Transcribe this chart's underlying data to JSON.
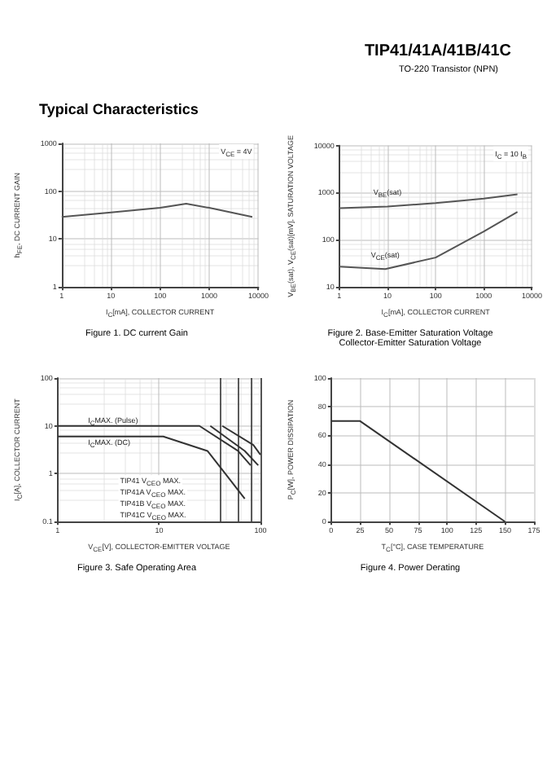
{
  "chart_data": [
    {
      "type": "line",
      "title": "Figure 1. DC current Gain",
      "annotations": [
        "TIP41/41A/41B/41C",
        "TO-220 Transistor (NPN)",
        "Typical Characteristics",
        "V$_{CE}$ = 4V"
      ],
      "xlabel": "I$_{C}$[mA], COLLECTOR CURRENT",
      "ylabel": "h$_{FE}$, DC CURRENT GAIN",
      "log": "xy",
      "xlim": [
        1,
        10000
      ],
      "ylim": [
        1,
        1000
      ],
      "xticks": [
        1,
        10,
        100,
        1000,
        10000
      ],
      "yticks": [
        1,
        10,
        100,
        1000
      ],
      "grid": true,
      "marker": "none",
      "line_style": "solid",
      "series": [
        {
          "color": "#555555",
          "x": [
            1,
            10,
            100,
            340,
            1000,
            7500
          ],
          "values": [
            29,
            36,
            45,
            55,
            45,
            29
          ]
        }
      ]
    },
    {
      "type": "line",
      "title": "Figure 2. Base-Emitter Saturation Voltage\nCollector-Emitter Saturation Voltage",
      "annotations": [
        "I$_{C}$ = 10 I$_{B}$"
      ],
      "xlabel": "I$_{C}$[mA], COLLECTOR CURRENT",
      "ylabel": "V$_{BE}$(sat), V$_{CE}$(sat)[mV], SATURATION VOLTAGE",
      "log": "xy",
      "xlim": [
        1,
        10000
      ],
      "ylim": [
        10,
        10000
      ],
      "xticks": [
        1,
        10,
        100,
        1000,
        10000
      ],
      "yticks": [
        10,
        100,
        1000,
        10000
      ],
      "grid": true,
      "marker": "none",
      "line_style": "solid",
      "series": [
        {
          "name": "V$_{BE}$(sat)",
          "color": "#555555",
          "x": [
            1,
            10,
            100,
            1000,
            5000
          ],
          "values": [
            470,
            510,
            600,
            750,
            920
          ]
        },
        {
          "name": "V$_{CE}$(sat)",
          "color": "#555555",
          "x": [
            1,
            9,
            100,
            1000,
            5000
          ],
          "values": [
            27,
            24,
            42,
            150,
            390
          ]
        }
      ]
    },
    {
      "type": "line",
      "title": "Figure 3. Safe Operating Area",
      "annotations": [
        {
          "text": "I$_{C}$MAX. (Pulse)",
          "x": 2,
          "y": 13
        },
        {
          "text": "I$_{C}$MAX. (DC)",
          "x": 2,
          "y": 4.5
        },
        "TIP41 V$_{CEO}$ MAX.",
        "TIP41A V$_{CEO}$ MAX.",
        "TIP41B V$_{CEO}$ MAX.",
        "TIP41C V$_{CEO}$ MAX."
      ],
      "xlabel": "V$_{CE}$[V], COLLECTOR-EMITTER VOLTAGE",
      "ylabel": "I$_{C}$[A], COLLECTOR CURRENT",
      "log": "xy",
      "xlim": [
        1,
        100
      ],
      "ylim": [
        0.1,
        100
      ],
      "xticks": [
        1,
        10,
        100
      ],
      "yticks": [
        0.1,
        1,
        10,
        100
      ],
      "grid": true,
      "marker": "none",
      "line_style": "solid",
      "ref_lines": [
        {
          "axis": "x",
          "value": 40
        },
        {
          "axis": "x",
          "value": 60
        },
        {
          "axis": "x",
          "value": 80
        },
        {
          "axis": "x",
          "value": 100
        }
      ],
      "series": [
        {
          "color": "#333333",
          "x": [
            1,
            11,
            30,
            45,
            70
          ],
          "values": [
            6,
            6,
            3,
            1,
            0.3
          ]
        },
        {
          "color": "#333333",
          "x": [
            1,
            25,
            60,
            80
          ],
          "values": [
            10,
            10,
            3,
            1.5
          ]
        },
        {
          "color": "#333333",
          "x": [
            32,
            70,
            95
          ],
          "values": [
            10,
            3,
            1.5
          ]
        },
        {
          "color": "#333333",
          "x": [
            42,
            85,
            100
          ],
          "values": [
            10,
            4,
            2.5
          ]
        }
      ]
    },
    {
      "type": "line",
      "title": "Figure 4. Power Derating",
      "xlabel": "T$_{C}$[°C], CASE TEMPERATURE",
      "ylabel": "P$_{C}$[W], POWER DISSIPATION",
      "xlim": [
        0,
        175
      ],
      "ylim": [
        0,
        100
      ],
      "xticks": [
        0,
        25,
        50,
        75,
        100,
        125,
        150,
        175
      ],
      "yticks": [
        0,
        20,
        40,
        60,
        80,
        100
      ],
      "grid": true,
      "marker": "none",
      "line_style": "solid",
      "series": [
        {
          "color": "#333333",
          "x": [
            0,
            25,
            150
          ],
          "values": [
            70,
            70,
            0
          ]
        }
      ]
    }
  ]
}
